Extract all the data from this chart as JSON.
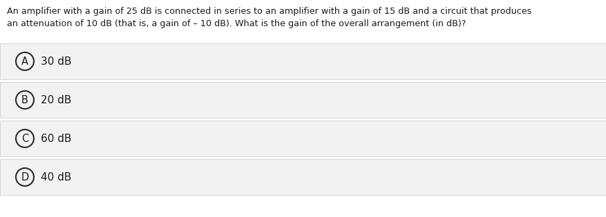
{
  "question_line1": "An amplifier with a gain of 25 dB is connected in series to an amplifier with a gain of 15 dB and a circuit that produces",
  "question_line2": "an attenuation of 10 dB (that is, a gain of – 10 dB). What is the gain of the overall arrangement (in dB)?",
  "options": [
    {
      "label": "A",
      "text": "30 dB"
    },
    {
      "label": "B",
      "text": "20 dB"
    },
    {
      "label": "C",
      "text": "60 dB"
    },
    {
      "label": "D",
      "text": "40 dB"
    }
  ],
  "bg_color": "#ffffff",
  "option_bg_color": "#f2f2f2",
  "option_border_color": "#d0d0d0",
  "text_color": "#1a1a1a",
  "circle_edge_color": "#2a2a2a",
  "question_fontsize": 9.2,
  "option_text_fontsize": 11.0,
  "label_fontsize": 10.5,
  "fig_width": 8.77,
  "fig_height": 3.15,
  "dpi": 100
}
